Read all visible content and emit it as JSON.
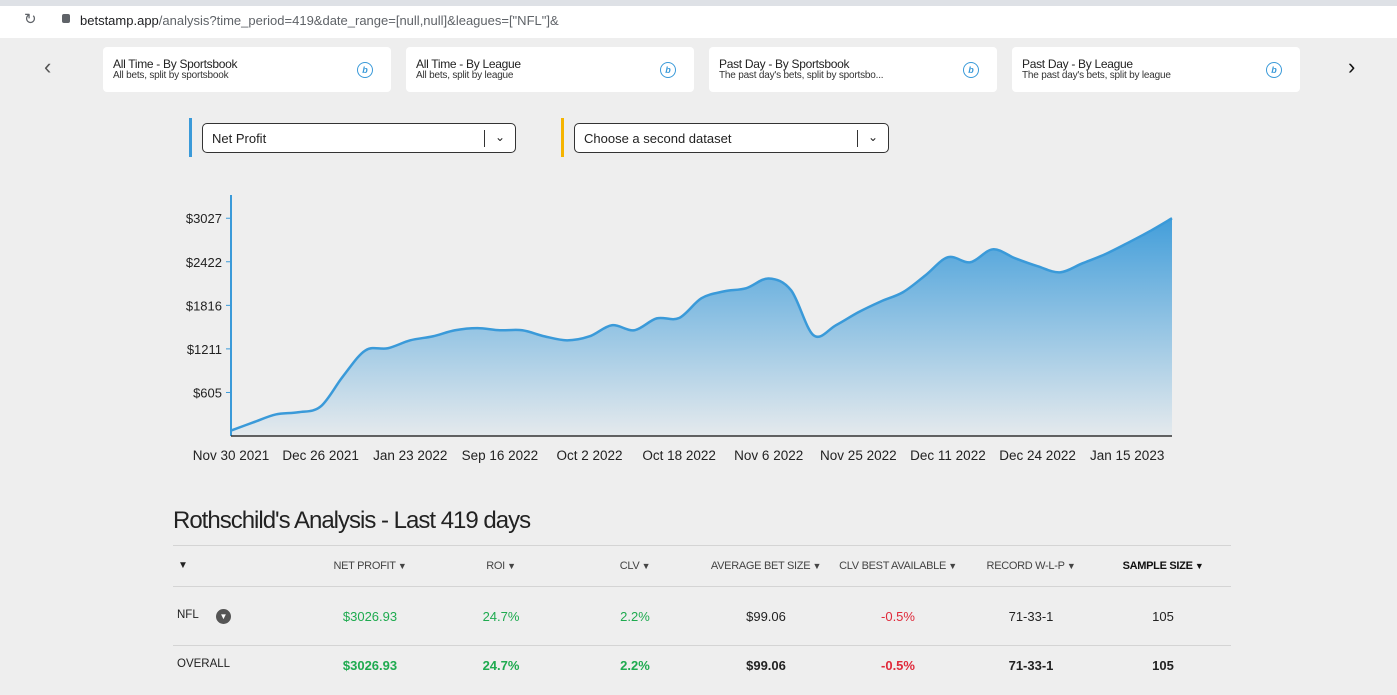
{
  "browser": {
    "url_host": "betstamp.app",
    "url_path": "/analysis?time_period=419&date_range=[null,null]&leagues=[\"NFL\"]&"
  },
  "cards": [
    {
      "title": "All Time - By Sportsbook",
      "subtitle": "All bets, split by sportsbook"
    },
    {
      "title": "All Time - By League",
      "subtitle": "All bets, split by league"
    },
    {
      "title": "Past Day - By Sportsbook",
      "subtitle": "The past day's bets, split by sportsbo..."
    },
    {
      "title": "Past Day - By League",
      "subtitle": "The past day's bets, split by league"
    }
  ],
  "dropdowns": [
    "Net Profit",
    "Choose a second dataset"
  ],
  "chart_data": {
    "type": "area",
    "categories": [
      "Nov 30 2021",
      null,
      null,
      null,
      "Dec 26 2021",
      null,
      null,
      null,
      "Jan 23 2022",
      null,
      null,
      null,
      "Sep 16 2022",
      null,
      null,
      null,
      "Oct 2 2022",
      null,
      null,
      null,
      "Oct 18 2022",
      null,
      null,
      null,
      "Nov 6 2022",
      null,
      null,
      null,
      "Nov 25 2022",
      null,
      null,
      null,
      "Dec 11 2022",
      null,
      null,
      null,
      "Dec 24 2022",
      null,
      null,
      null,
      "Jan 15 2023",
      null,
      null
    ],
    "series": [
      {
        "name": "Net Profit",
        "color": "#3a9ad9",
        "values": [
          75,
          190,
          300,
          330,
          410,
          830,
          1190,
          1220,
          1330,
          1385,
          1470,
          1500,
          1470,
          1470,
          1385,
          1330,
          1385,
          1540,
          1470,
          1635,
          1640,
          1915,
          2010,
          2055,
          2190,
          2025,
          1400,
          1540,
          1720,
          1870,
          2000,
          2235,
          2485,
          2415,
          2595,
          2470,
          2360,
          2275,
          2400,
          2525,
          2680,
          2845,
          3026.93
        ]
      }
    ],
    "ylim": [
      0,
      3350
    ],
    "yticks": [
      {
        "value": 605,
        "label": "$605"
      },
      {
        "value": 1211,
        "label": "$1211"
      },
      {
        "value": 1816,
        "label": "$1816"
      },
      {
        "value": 2422,
        "label": "$2422"
      },
      {
        "value": 3027,
        "label": "$3027"
      }
    ]
  },
  "analysis": {
    "title": "Rothschild's Analysis - Last 419 days",
    "columns": [
      "NET PROFIT",
      "ROI",
      "CLV",
      "AVERAGE BET SIZE",
      "CLV BEST AVAILABLE",
      "RECORD W-L-P",
      "SAMPLE SIZE"
    ],
    "rows": [
      [
        "NFL",
        "$3026.93",
        "24.7%",
        "2.2%",
        "$99.06",
        "-0.5%",
        "71-33-1",
        "105"
      ],
      [
        "OVERALL",
        "$3026.93",
        "24.7%",
        "2.2%",
        "$99.06",
        "-0.5%",
        "71-33-1",
        "105"
      ]
    ]
  }
}
